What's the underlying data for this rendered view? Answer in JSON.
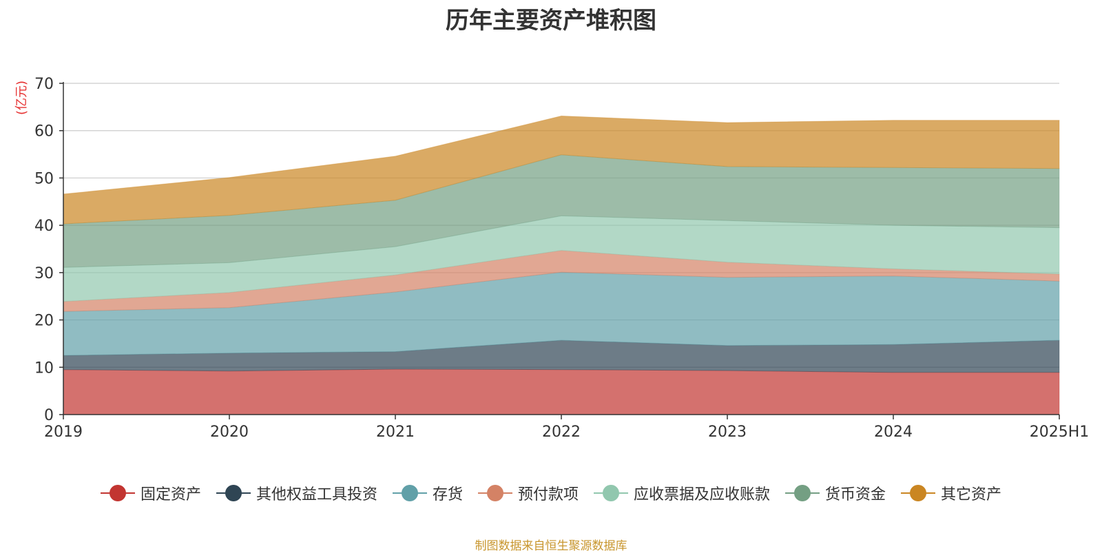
{
  "chart_data": {
    "type": "area",
    "stacked": true,
    "title": "历年主要资产堆积图",
    "ylabel": "(亿元)",
    "xlabel": "",
    "categories": [
      "2019",
      "2020",
      "2021",
      "2022",
      "2023",
      "2024",
      "2025H1"
    ],
    "ylim": [
      0,
      70
    ],
    "yticks": [
      0,
      10,
      20,
      30,
      40,
      50,
      60,
      70
    ],
    "grid": true,
    "legend_position": "bottom",
    "series": [
      {
        "name": "固定资产",
        "color": "#c23531",
        "values": [
          9.5,
          9.2,
          9.6,
          9.5,
          9.3,
          8.9,
          8.9
        ]
      },
      {
        "name": "其他权益工具投资",
        "color": "#2f4554",
        "values": [
          3.0,
          3.8,
          3.7,
          6.2,
          5.3,
          5.9,
          6.8
        ]
      },
      {
        "name": "存货",
        "color": "#61a0a8",
        "values": [
          9.3,
          9.6,
          12.6,
          14.4,
          14.4,
          14.5,
          12.5
        ]
      },
      {
        "name": "预付款项",
        "color": "#d48265",
        "values": [
          2.1,
          3.2,
          3.6,
          4.6,
          3.2,
          1.5,
          1.5
        ]
      },
      {
        "name": "应收票据及应收账款",
        "color": "#91c7ae",
        "values": [
          7.2,
          6.3,
          6.0,
          7.3,
          8.8,
          9.2,
          9.8
        ]
      },
      {
        "name": "货币资金",
        "color": "#749f83",
        "values": [
          9.2,
          10.0,
          9.8,
          12.9,
          11.4,
          12.2,
          12.5
        ]
      },
      {
        "name": "其它资产",
        "color": "#ca8622",
        "values": [
          6.3,
          8.0,
          9.3,
          8.2,
          9.3,
          10.0,
          10.2
        ]
      }
    ]
  },
  "source_note": "制图数据来自恒生聚源数据库"
}
